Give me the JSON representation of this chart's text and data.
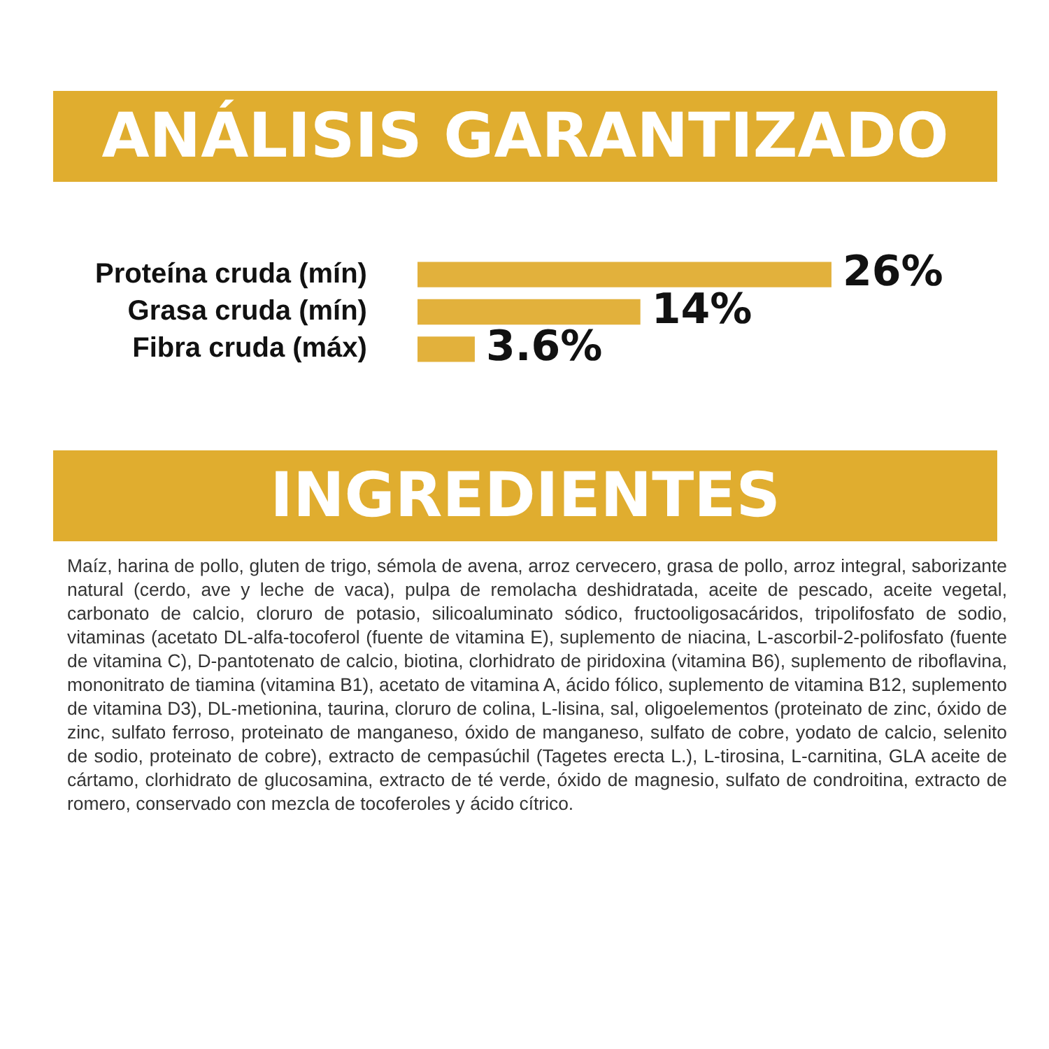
{
  "chart_data": {
    "type": "bar",
    "orientation": "horizontal",
    "title": "ANÁLISIS GARANTIZADO",
    "categories": [
      "Proteína cruda (mín)",
      "Grasa cruda (mín)",
      "Fibra cruda (máx)"
    ],
    "values": [
      26,
      14,
      3.6
    ],
    "value_labels": [
      "26%",
      "14%",
      "3.6%"
    ],
    "color": "#e2b13c",
    "annotations": [
      "INGREDIENTES",
      "Maíz, harina de pollo, gluten de trigo, sémola de avena, arroz cervecero, grasa de pollo, arroz integral, saborizante natural (cerdo, ave y leche de vaca), pulpa de remolacha deshidratada, aceite de pescado, aceite vegetal, carbonato de calcio, cloruro de potasio, silicoaluminato sódico, fructooligosacáridos, tripolifosfato de sodio, vitaminas (acetato DL-alfa-tocoferol (fuente de vitamina E), suplemento de niacina, L-ascorbil-2-polifosfato (fuente de vitamina C), D-pantotenato de calcio, biotina, clorhidrato de piridoxina (vitamina B6), suplemento de riboflavina, mononitrato de tiamina (vitamina B1), acetato de vitamina A, ácido fólico, suplemento de vitamina B12, suplemento de vitamina D3), DL-metionina, taurina, cloruro de colina, L-lisina, sal, oligoelementos (proteinato de zinc, óxido de zinc, sulfato ferroso, proteinato de manganeso, óxido de manganeso, sulfato de cobre, yodato de calcio, selenito de sodio, proteinato de cobre), extracto de cempasúchil (Tagetes erecta L.), L-tirosina, L-carnitina, GLA aceite de cártamo, clorhidrato de glucosamina, extracto de té verde, óxido de magnesio, sulfato de condroitina, extracto de romero, conservado con mezcla de tocoferoles y ácido cítrico."
    ]
  }
}
